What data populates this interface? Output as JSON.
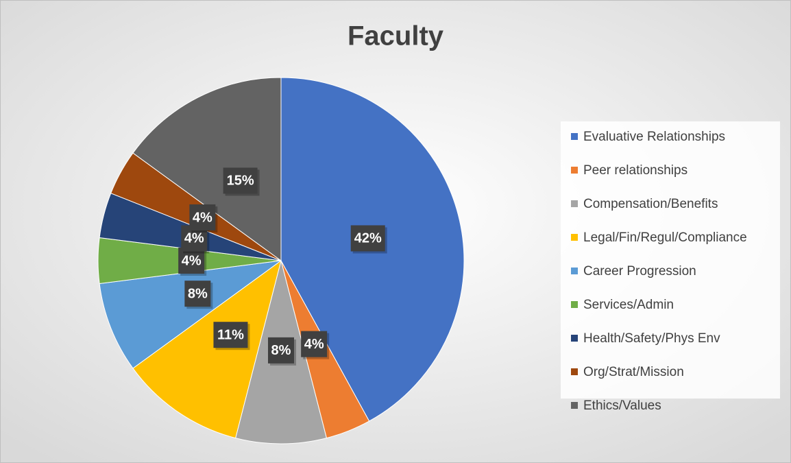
{
  "chart_data": {
    "type": "pie",
    "title": "Faculty",
    "categories": [
      "Evaluative Relationships",
      "Peer relationships",
      "Compensation/Benefits",
      "Legal/Fin/Regul/Compliance",
      "Career Progression",
      "Services/Admin",
      "Health/Safety/Phys Env",
      "Org/Strat/Mission",
      "Ethics/Values"
    ],
    "values": [
      42,
      4,
      8,
      11,
      8,
      4,
      4,
      4,
      15
    ],
    "value_labels": [
      "42%",
      "4%",
      "8%",
      "11%",
      "8%",
      "4%",
      "4%",
      "4%",
      "15%"
    ],
    "colors": [
      "#4472c4",
      "#ed7d31",
      "#a5a5a5",
      "#ffc000",
      "#5b9bd5",
      "#70ad47",
      "#264478",
      "#9e480e",
      "#636363"
    ],
    "legend": "right"
  }
}
